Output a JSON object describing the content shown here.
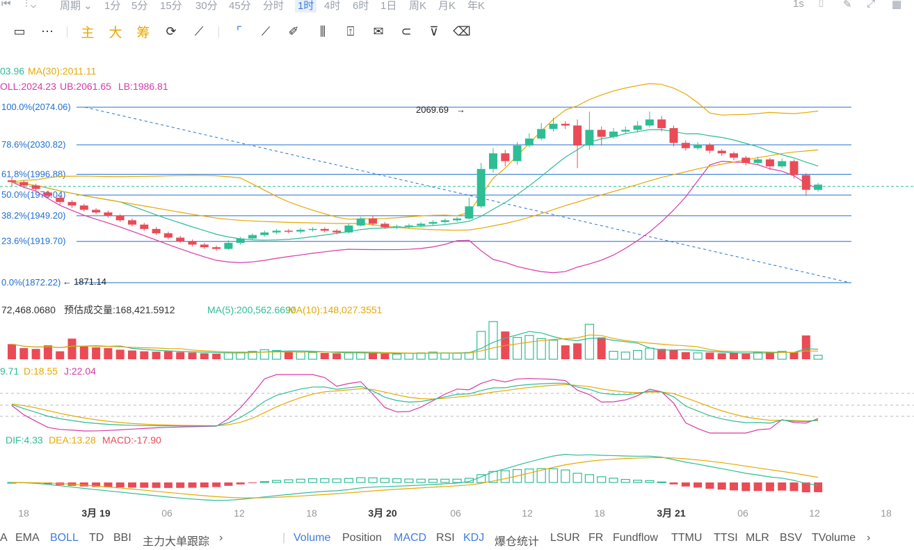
{
  "topbar": {
    "period_label": "周期",
    "intervals": [
      "1分",
      "5分",
      "15分",
      "30分",
      "45分",
      "分时",
      "1时",
      "4时",
      "6时",
      "1日",
      "周K",
      "月K",
      "年K"
    ],
    "active_interval": "1时",
    "refresh": "1s"
  },
  "toolbar": {
    "gold_labels": [
      "主",
      "大",
      "筹"
    ]
  },
  "legends": {
    "ma_text": "03.96",
    "ma30": "MA(30):2011.11",
    "boll": "OLL:2024.23",
    "ub": "UB:2061.65",
    "lb": "LB:1986.81",
    "vol_total": "72,468.0680",
    "vol_est": "预估成交量:168,421.5912",
    "vol_ma5": "MA(5):200,562.6690",
    "vol_ma10": "MA(10):148,027.3551",
    "kdj_k": "9.71",
    "kdj_d": "D:18.55",
    "kdj_j": "J:22.04",
    "macd_dif": "DIF:4.33",
    "macd_dea": "DEA:13.28",
    "macd_val": "MACD:-17.90"
  },
  "fib_levels": [
    {
      "label": "100.0%(2074.06)",
      "price": 2074.06
    },
    {
      "label": "78.6%(2030.82)",
      "price": 2030.82
    },
    {
      "label": "61.8%(1996.88)",
      "price": 1996.88
    },
    {
      "label": "50.0%(1973.04)",
      "price": 1973.04
    },
    {
      "label": "38.2%(1949.20)",
      "price": 1949.2
    },
    {
      "label": "23.6%(1919.70)",
      "price": 1919.7
    },
    {
      "label": "0.0%(1872.22)",
      "price": 1872.22
    }
  ],
  "annotations": {
    "high": "2069.69",
    "low": "1871.14"
  },
  "current_price": 1983,
  "x_axis": [
    "18",
    "3月 19",
    "06",
    "12",
    "18",
    "3月 20",
    "06",
    "12",
    "18",
    "3月 21",
    "06",
    "12",
    "18"
  ],
  "candles": [
    [
      1990,
      1988,
      1994,
      1983
    ],
    [
      1988,
      1984,
      1990,
      1981
    ],
    [
      1984,
      1980,
      1986,
      1977
    ],
    [
      1976,
      1972,
      1978,
      1970
    ],
    [
      1970,
      1965,
      1972,
      1962
    ],
    [
      1965,
      1961,
      1967,
      1958
    ],
    [
      1961,
      1956,
      1963,
      1954
    ],
    [
      1956,
      1953,
      1958,
      1951
    ],
    [
      1953,
      1949,
      1955,
      1947
    ],
    [
      1949,
      1944,
      1951,
      1942
    ],
    [
      1944,
      1939,
      1946,
      1937
    ],
    [
      1939,
      1934,
      1941,
      1932
    ],
    [
      1934,
      1929,
      1936,
      1927
    ],
    [
      1929,
      1924,
      1931,
      1922
    ],
    [
      1924,
      1920,
      1926,
      1918
    ],
    [
      1920,
      1916,
      1922,
      1914
    ],
    [
      1916,
      1913,
      1918,
      1911
    ],
    [
      1913,
      1911,
      1915,
      1909
    ],
    [
      1911,
      1918,
      1921,
      1910
    ],
    [
      1918,
      1923,
      1925,
      1916
    ],
    [
      1923,
      1927,
      1929,
      1921
    ],
    [
      1927,
      1930,
      1932,
      1925
    ],
    [
      1930,
      1932,
      1934,
      1928
    ],
    [
      1932,
      1931,
      1934,
      1929
    ],
    [
      1931,
      1933,
      1935,
      1929
    ],
    [
      1933,
      1934,
      1936,
      1931
    ],
    [
      1934,
      1932,
      1936,
      1930
    ],
    [
      1932,
      1930,
      1934,
      1928
    ],
    [
      1930,
      1938,
      1940,
      1929
    ],
    [
      1938,
      1946,
      1948,
      1937
    ],
    [
      1946,
      1940,
      1949,
      1938
    ],
    [
      1940,
      1936,
      1942,
      1934
    ],
    [
      1936,
      1937,
      1939,
      1934
    ],
    [
      1937,
      1938,
      1940,
      1935
    ],
    [
      1938,
      1940,
      1942,
      1936
    ],
    [
      1940,
      1942,
      1944,
      1938
    ],
    [
      1942,
      1944,
      1946,
      1940
    ],
    [
      1944,
      1946,
      1948,
      1942
    ],
    [
      1946,
      1960,
      1970,
      1945
    ],
    [
      1960,
      2003,
      2010,
      1958
    ],
    [
      2003,
      2021,
      2027,
      1999
    ],
    [
      2021,
      2012,
      2025,
      2006
    ],
    [
      2012,
      2030,
      2034,
      2008
    ],
    [
      2030,
      2038,
      2044,
      2028
    ],
    [
      2038,
      2049,
      2056,
      2036
    ],
    [
      2049,
      2055,
      2062,
      2046
    ],
    [
      2055,
      2053,
      2058,
      2049
    ],
    [
      2053,
      2030,
      2060,
      2004
    ],
    [
      2030,
      2048,
      2069,
      2025
    ],
    [
      2048,
      2040,
      2052,
      2030
    ],
    [
      2040,
      2046,
      2050,
      2038
    ],
    [
      2046,
      2048,
      2052,
      2043
    ],
    [
      2048,
      2053,
      2058,
      2045
    ],
    [
      2053,
      2060,
      2069,
      2051
    ],
    [
      2060,
      2050,
      2064,
      2046
    ],
    [
      2050,
      2033,
      2053,
      2029
    ],
    [
      2033,
      2027,
      2036,
      2024
    ],
    [
      2027,
      2031,
      2034,
      2025
    ],
    [
      2031,
      2024,
      2033,
      2021
    ],
    [
      2024,
      2021,
      2026,
      2018
    ],
    [
      2021,
      2016,
      2023,
      2013
    ],
    [
      2016,
      2010,
      2018,
      2007
    ],
    [
      2010,
      2014,
      2017,
      2008
    ],
    [
      2014,
      2006,
      2016,
      2002
    ],
    [
      2006,
      2012,
      2015,
      2004
    ],
    [
      2012,
      1996,
      2014,
      1992
    ],
    [
      1996,
      1979,
      1998,
      1972
    ],
    [
      1979,
      1985,
      1987,
      1977
    ]
  ],
  "volume": [
    38,
    28,
    26,
    35,
    20,
    52,
    33,
    30,
    28,
    24,
    22,
    20,
    19,
    20,
    18,
    17,
    15,
    14,
    16,
    18,
    20,
    24,
    22,
    20,
    18,
    17,
    16,
    15,
    16,
    17,
    15,
    14,
    13,
    15,
    16,
    18,
    16,
    15,
    17,
    70,
    95,
    70,
    55,
    60,
    52,
    48,
    35,
    40,
    88,
    55,
    20,
    18,
    22,
    28,
    26,
    24,
    18,
    16,
    17,
    15,
    16,
    14,
    17,
    18,
    20,
    18,
    60,
    10
  ],
  "bottombar": {
    "left": [
      "A",
      "EMA",
      "BOLL",
      "TD",
      "BBI",
      "主力大单跟踪"
    ],
    "right": [
      "Volume",
      "Position",
      "MACD",
      "RSI",
      "KDJ",
      "爆仓统计",
      "LSUR",
      "FR",
      "Fundflow",
      "TTMU",
      "TTSI",
      "MLR",
      "BSV",
      "TVolume"
    ],
    "active": [
      "BOLL",
      "Volume",
      "MACD",
      "KDJ"
    ]
  },
  "colors": {
    "up": "#2ebd95",
    "down": "#ea4b56",
    "accent": "#3f7be0",
    "gold": "#e6a800",
    "pink": "#d63aa7",
    "fib": "#1f6fd1"
  }
}
